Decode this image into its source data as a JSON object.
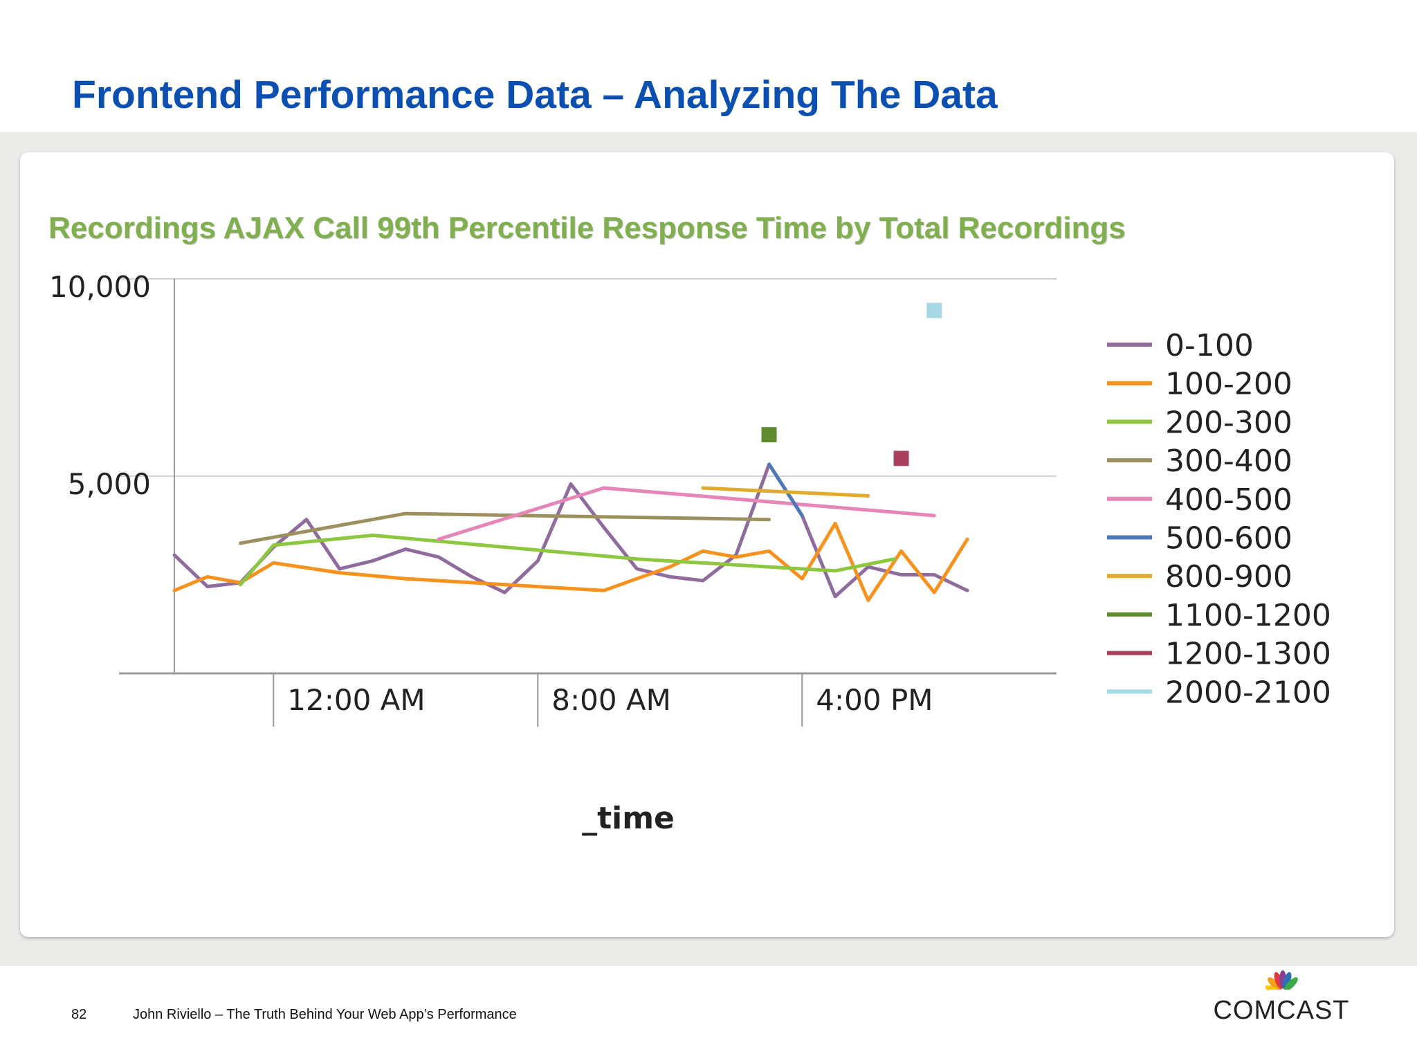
{
  "slide": {
    "title": "Frontend Performance Data – Analyzing The Data",
    "page_number": "82",
    "footer": "John Riviello – The Truth Behind Your Web App’s Performance",
    "logo_text": "COMCAST"
  },
  "colors": {
    "title": "#0b4fb0",
    "chart_title": "#7fb04d",
    "band": "#ebebea"
  },
  "chart_data": {
    "type": "line",
    "title": "Recordings AJAX Call 99th Percentile Response Time by Total Recordings",
    "xlabel": "_time",
    "ylabel": "",
    "x_unit": "hours since 12:00 AM",
    "x_ticks": [
      {
        "x": 0,
        "label": "12:00 AM"
      },
      {
        "x": 8,
        "label": "8:00 AM"
      },
      {
        "x": 16,
        "label": "4:00 PM"
      }
    ],
    "xlim": [
      -3,
      23.7
    ],
    "y_ticks": [
      {
        "y": 5000,
        "label": "5,000"
      },
      {
        "y": 10000,
        "label": "10,000"
      }
    ],
    "ylim": [
      0,
      10000
    ],
    "legend_position": "right",
    "series": [
      {
        "name": "0-100",
        "color": "#8f6b9e",
        "marker": false,
        "x": [
          -3,
          -2,
          -1,
          0,
          1,
          2,
          3,
          4,
          5,
          6,
          7,
          8,
          9,
          10,
          11,
          12,
          13,
          14,
          15,
          16,
          17,
          18,
          19,
          20,
          21
        ],
        "y": [
          3000,
          2200,
          2300,
          3200,
          3900,
          2650,
          2850,
          3150,
          2950,
          2450,
          2050,
          2850,
          4800,
          3700,
          2650,
          2450,
          2350,
          3000,
          5300,
          4000,
          1950,
          2700,
          2500,
          2500,
          2100
        ]
      },
      {
        "name": "100-200",
        "color": "#f7921e",
        "marker": false,
        "x": [
          -3,
          -2,
          -1,
          0,
          2,
          4,
          6,
          8,
          10,
          11,
          12,
          13,
          14,
          15,
          16,
          17,
          18,
          19,
          20,
          21
        ],
        "y": [
          2100,
          2450,
          2300,
          2800,
          2550,
          2400,
          2300,
          2200,
          2100,
          2400,
          2700,
          3100,
          2950,
          3100,
          2400,
          3800,
          1850,
          3100,
          2050,
          3400
        ]
      },
      {
        "name": "200-300",
        "color": "#8dc63f",
        "marker": false,
        "x": [
          -1,
          0,
          3,
          7,
          11,
          16,
          17,
          18.8
        ],
        "y": [
          2250,
          3250,
          3500,
          3200,
          2900,
          2650,
          2600,
          2900
        ]
      },
      {
        "name": "300-400",
        "color": "#9c9060",
        "marker": false,
        "x": [
          -1,
          4,
          15
        ],
        "y": [
          3300,
          4050,
          3900
        ]
      },
      {
        "name": "400-500",
        "color": "#e585b8",
        "marker": false,
        "x": [
          5,
          10,
          20
        ],
        "y": [
          3400,
          4700,
          4000
        ]
      },
      {
        "name": "500-600",
        "color": "#4d79b8",
        "marker": false,
        "x": [
          15,
          16
        ],
        "y": [
          5300,
          4000
        ]
      },
      {
        "name": "800-900",
        "color": "#e1ac2d",
        "marker": false,
        "x": [
          13,
          18
        ],
        "y": [
          4700,
          4500
        ]
      },
      {
        "name": "1100-1200",
        "color": "#5f8b2f",
        "marker": true,
        "x": [
          15
        ],
        "y": [
          6050
        ]
      },
      {
        "name": "1200-1300",
        "color": "#a8405e",
        "marker": true,
        "x": [
          19
        ],
        "y": [
          5450
        ]
      },
      {
        "name": "2000-2100",
        "color": "#a6d8e5",
        "marker": true,
        "x": [
          20
        ],
        "y": [
          9200
        ]
      }
    ]
  }
}
